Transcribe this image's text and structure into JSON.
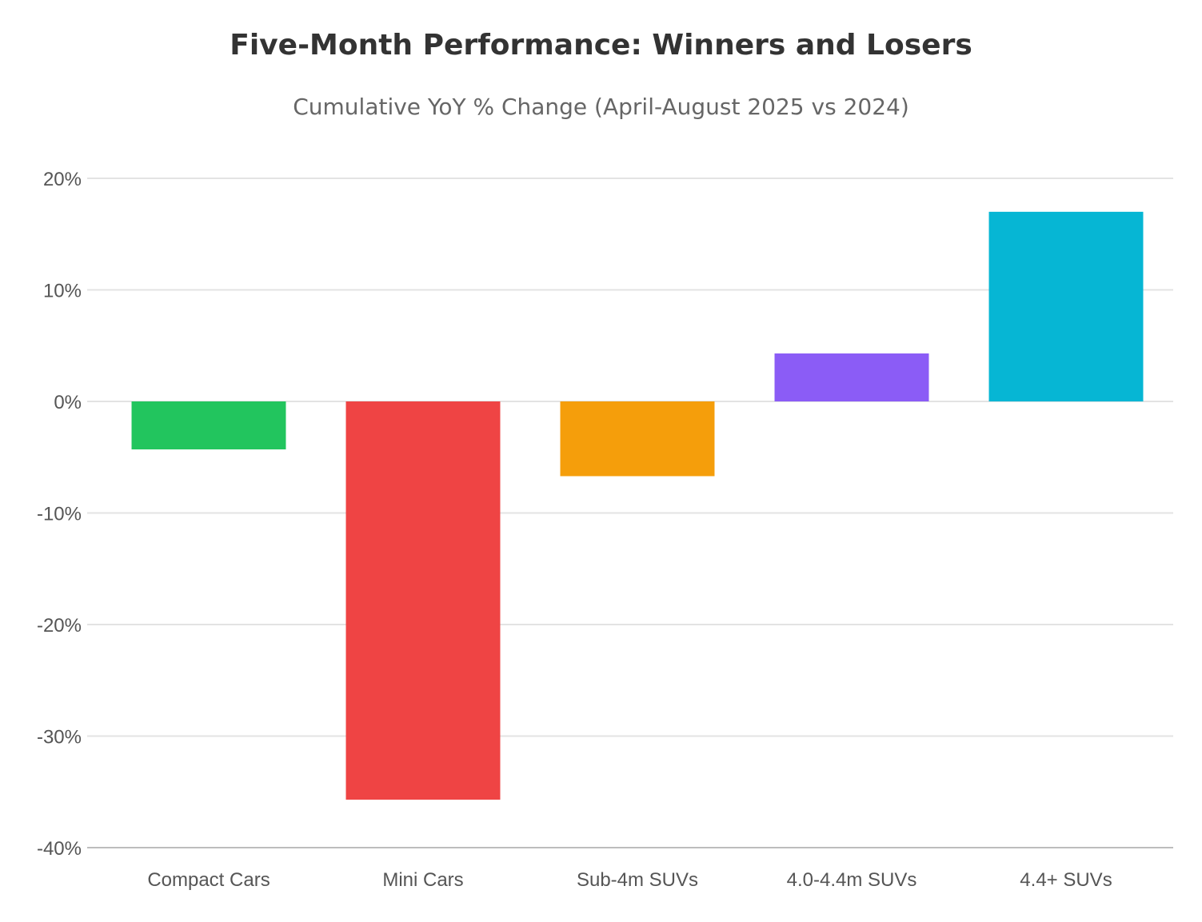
{
  "chart_data": {
    "type": "bar",
    "title": "Five-Month Performance: Winners and Losers",
    "subtitle": "Cumulative YoY % Change (April-August 2025 vs 2024)",
    "xlabel": "",
    "ylabel": "",
    "categories": [
      "Compact Cars",
      "Mini Cars",
      "Sub-4m SUVs",
      "4.0-4.4m SUVs",
      "4.4+ SUVs"
    ],
    "values": [
      -4.3,
      -35.7,
      -6.7,
      4.3,
      17.0
    ],
    "colors": [
      "#22c55e",
      "#ef4444",
      "#f59e0b",
      "#8b5cf6",
      "#06b6d4"
    ],
    "ylim": [
      -40,
      20
    ],
    "yticks": [
      20,
      10,
      0,
      -10,
      -20,
      -30,
      -40
    ],
    "ytick_labels": [
      "20%",
      "10%",
      "0%",
      "-10%",
      "-20%",
      "-30%",
      "-40%"
    ],
    "grid": true,
    "legend": "none"
  }
}
